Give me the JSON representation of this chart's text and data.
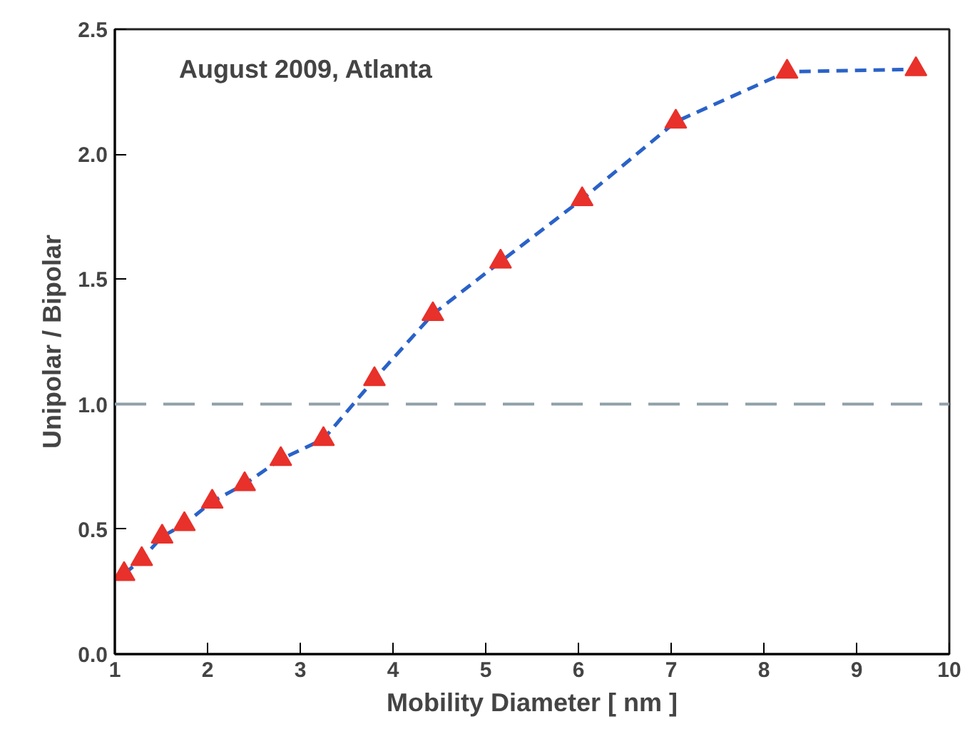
{
  "chart_data": {
    "type": "line",
    "xlabel": "Mobility Diameter [ nm ]",
    "ylabel": "Unipolar / Bipolar",
    "annotations": [
      "August 2009, Atlanta"
    ],
    "x": [
      1.1,
      1.29,
      1.51,
      1.75,
      2.05,
      2.4,
      2.79,
      3.25,
      3.8,
      4.43,
      5.16,
      6.04,
      7.05,
      8.25,
      9.64
    ],
    "series": [
      {
        "color": "#2a62c8",
        "marker": "none",
        "values": [
          0.32,
          0.38,
          0.47,
          0.52,
          0.61,
          0.68,
          0.78,
          0.86,
          1.1,
          1.36,
          1.57,
          1.82,
          2.13,
          2.33,
          2.34
        ]
      },
      {
        "type": "scatter",
        "marker": "triangle",
        "color": "#e8312a",
        "values": [
          0.32,
          0.38,
          0.47,
          0.52,
          0.61,
          0.68,
          0.78,
          0.86,
          1.1,
          1.36,
          1.57,
          1.82,
          2.13,
          2.33,
          2.34
        ]
      }
    ],
    "line_style": "dashed",
    "xlim": [
      1,
      10
    ],
    "ylim": [
      0,
      2.5
    ],
    "xticks": [
      1,
      2,
      3,
      4,
      5,
      6,
      7,
      8,
      9,
      10
    ],
    "yticks": [
      {
        "value": 0,
        "label": "0.0"
      },
      {
        "value": 0.5,
        "label": "0.5"
      },
      {
        "value": 1,
        "label": "1.0"
      },
      {
        "value": 1.5,
        "label": "1.5"
      },
      {
        "value": 2,
        "label": "2.0"
      },
      {
        "value": 2.5,
        "label": "2.5"
      }
    ],
    "ref_lines": [
      {
        "axis": "y",
        "value": 1,
        "color": "#8fa0a8",
        "line_style": "dashed"
      }
    ],
    "grid": false
  }
}
